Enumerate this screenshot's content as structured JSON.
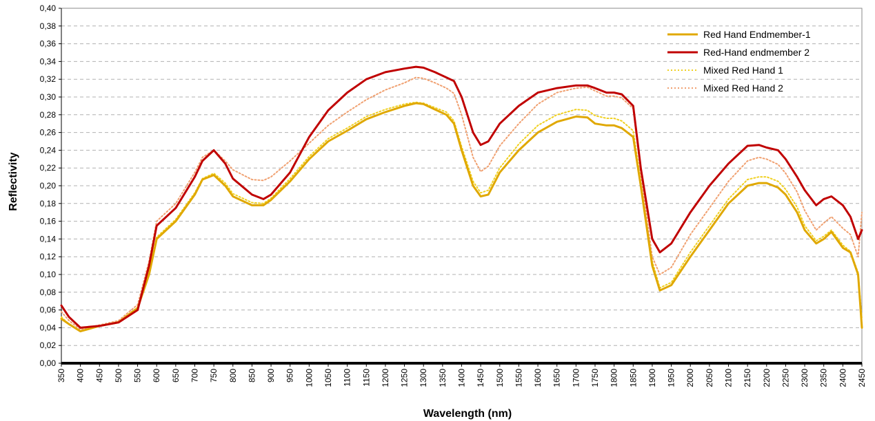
{
  "chart_data": {
    "type": "line",
    "xlabel": "Wavelength (nm)",
    "ylabel": "Reflectivity",
    "xlim": [
      350,
      2450
    ],
    "ylim": [
      0.0,
      0.4
    ],
    "x_ticks": [
      350,
      400,
      450,
      500,
      550,
      600,
      650,
      700,
      750,
      800,
      850,
      900,
      950,
      1000,
      1050,
      1100,
      1150,
      1200,
      1250,
      1300,
      1350,
      1400,
      1450,
      1500,
      1550,
      1600,
      1650,
      1700,
      1750,
      1800,
      1850,
      1900,
      1950,
      2000,
      2050,
      2100,
      2150,
      2200,
      2250,
      2300,
      2350,
      2400,
      2450
    ],
    "y_ticks": [
      "0,00",
      "0,02",
      "0,04",
      "0,06",
      "0,08",
      "0,10",
      "0,12",
      "0,14",
      "0,16",
      "0,18",
      "0,20",
      "0,22",
      "0,24",
      "0,26",
      "0,28",
      "0,30",
      "0,32",
      "0,34",
      "0,36",
      "0,38",
      "0,40"
    ],
    "y_tick_values": [
      0,
      0.02,
      0.04,
      0.06,
      0.08,
      0.1,
      0.12,
      0.14,
      0.16,
      0.18,
      0.2,
      0.22,
      0.24,
      0.26,
      0.28,
      0.3,
      0.32,
      0.34,
      0.36,
      0.38,
      0.4
    ],
    "grid": "horizontal-dashed",
    "legend_position": "top-right",
    "series": [
      {
        "name": "Red Hand Endmember-1",
        "color": "#E0A800",
        "style": "solid",
        "x": [
          350,
          370,
          400,
          450,
          500,
          550,
          580,
          600,
          650,
          700,
          720,
          750,
          780,
          800,
          850,
          880,
          900,
          950,
          1000,
          1050,
          1100,
          1150,
          1200,
          1250,
          1280,
          1300,
          1330,
          1360,
          1380,
          1400,
          1430,
          1450,
          1470,
          1500,
          1550,
          1600,
          1650,
          1700,
          1730,
          1750,
          1780,
          1800,
          1820,
          1850,
          1870,
          1900,
          1920,
          1950,
          2000,
          2050,
          2100,
          2150,
          2180,
          2200,
          2230,
          2250,
          2280,
          2300,
          2330,
          2350,
          2370,
          2400,
          2420,
          2440,
          2450
        ],
        "y": [
          0.05,
          0.044,
          0.036,
          0.042,
          0.046,
          0.062,
          0.1,
          0.14,
          0.16,
          0.19,
          0.207,
          0.212,
          0.2,
          0.188,
          0.178,
          0.178,
          0.184,
          0.205,
          0.23,
          0.25,
          0.262,
          0.275,
          0.283,
          0.29,
          0.293,
          0.292,
          0.286,
          0.28,
          0.27,
          0.24,
          0.2,
          0.188,
          0.19,
          0.215,
          0.24,
          0.26,
          0.272,
          0.278,
          0.277,
          0.27,
          0.268,
          0.268,
          0.265,
          0.255,
          0.2,
          0.11,
          0.082,
          0.088,
          0.12,
          0.15,
          0.18,
          0.2,
          0.203,
          0.203,
          0.198,
          0.19,
          0.17,
          0.15,
          0.135,
          0.14,
          0.148,
          0.13,
          0.125,
          0.1,
          0.04
        ]
      },
      {
        "name": "Red-Hand endmember 2",
        "color": "#C00000",
        "style": "solid",
        "x": [
          350,
          370,
          400,
          450,
          500,
          550,
          580,
          600,
          650,
          700,
          720,
          750,
          780,
          800,
          850,
          880,
          900,
          950,
          1000,
          1050,
          1100,
          1150,
          1200,
          1250,
          1280,
          1300,
          1330,
          1360,
          1380,
          1400,
          1430,
          1450,
          1470,
          1500,
          1550,
          1600,
          1650,
          1700,
          1730,
          1750,
          1780,
          1800,
          1820,
          1850,
          1870,
          1900,
          1920,
          1950,
          2000,
          2050,
          2100,
          2150,
          2180,
          2200,
          2230,
          2250,
          2280,
          2300,
          2330,
          2350,
          2370,
          2400,
          2420,
          2440,
          2450
        ],
        "y": [
          0.065,
          0.052,
          0.04,
          0.042,
          0.046,
          0.06,
          0.11,
          0.155,
          0.175,
          0.21,
          0.228,
          0.24,
          0.225,
          0.208,
          0.19,
          0.185,
          0.19,
          0.215,
          0.255,
          0.285,
          0.305,
          0.32,
          0.328,
          0.332,
          0.334,
          0.333,
          0.328,
          0.322,
          0.318,
          0.3,
          0.26,
          0.246,
          0.25,
          0.27,
          0.29,
          0.305,
          0.31,
          0.313,
          0.313,
          0.31,
          0.305,
          0.305,
          0.303,
          0.29,
          0.22,
          0.14,
          0.125,
          0.135,
          0.17,
          0.2,
          0.225,
          0.245,
          0.246,
          0.243,
          0.24,
          0.23,
          0.21,
          0.195,
          0.178,
          0.185,
          0.188,
          0.178,
          0.165,
          0.14,
          0.15
        ]
      },
      {
        "name": "Mixed Red Hand 1",
        "color": "#F0D020",
        "style": "dotted",
        "x": [
          350,
          370,
          400,
          450,
          500,
          550,
          580,
          600,
          650,
          700,
          720,
          750,
          780,
          800,
          850,
          880,
          900,
          950,
          1000,
          1050,
          1100,
          1150,
          1200,
          1250,
          1280,
          1300,
          1330,
          1360,
          1380,
          1400,
          1430,
          1450,
          1470,
          1500,
          1550,
          1600,
          1650,
          1700,
          1730,
          1750,
          1780,
          1800,
          1820,
          1850,
          1870,
          1900,
          1920,
          1950,
          2000,
          2050,
          2100,
          2150,
          2180,
          2200,
          2230,
          2250,
          2280,
          2300,
          2330,
          2350,
          2370,
          2400,
          2420,
          2440,
          2450
        ],
        "y": [
          0.052,
          0.044,
          0.036,
          0.042,
          0.047,
          0.063,
          0.102,
          0.142,
          0.162,
          0.192,
          0.208,
          0.214,
          0.203,
          0.191,
          0.181,
          0.18,
          0.186,
          0.208,
          0.233,
          0.253,
          0.265,
          0.278,
          0.286,
          0.292,
          0.294,
          0.293,
          0.288,
          0.283,
          0.273,
          0.244,
          0.205,
          0.192,
          0.195,
          0.22,
          0.247,
          0.268,
          0.28,
          0.286,
          0.285,
          0.279,
          0.276,
          0.276,
          0.273,
          0.262,
          0.205,
          0.115,
          0.085,
          0.091,
          0.125,
          0.155,
          0.185,
          0.207,
          0.21,
          0.21,
          0.205,
          0.196,
          0.176,
          0.155,
          0.138,
          0.143,
          0.15,
          0.133,
          0.126,
          0.102,
          0.05
        ]
      },
      {
        "name": "Mixed Red Hand 2",
        "color": "#F0A070",
        "style": "dotted",
        "x": [
          350,
          370,
          400,
          450,
          500,
          550,
          580,
          600,
          650,
          700,
          720,
          750,
          780,
          800,
          850,
          880,
          900,
          950,
          1000,
          1050,
          1100,
          1150,
          1200,
          1250,
          1280,
          1300,
          1330,
          1360,
          1380,
          1400,
          1430,
          1450,
          1470,
          1500,
          1550,
          1600,
          1650,
          1700,
          1730,
          1750,
          1780,
          1800,
          1820,
          1850,
          1870,
          1900,
          1920,
          1950,
          2000,
          2050,
          2100,
          2150,
          2180,
          2200,
          2230,
          2250,
          2280,
          2300,
          2330,
          2350,
          2370,
          2400,
          2420,
          2440,
          2450
        ],
        "y": [
          0.058,
          0.048,
          0.038,
          0.043,
          0.048,
          0.066,
          0.115,
          0.16,
          0.18,
          0.215,
          0.232,
          0.24,
          0.228,
          0.218,
          0.207,
          0.206,
          0.21,
          0.228,
          0.248,
          0.268,
          0.283,
          0.297,
          0.308,
          0.316,
          0.322,
          0.321,
          0.316,
          0.31,
          0.304,
          0.28,
          0.232,
          0.216,
          0.222,
          0.245,
          0.27,
          0.292,
          0.305,
          0.31,
          0.311,
          0.307,
          0.301,
          0.301,
          0.299,
          0.287,
          0.215,
          0.12,
          0.1,
          0.108,
          0.145,
          0.175,
          0.205,
          0.228,
          0.232,
          0.23,
          0.224,
          0.214,
          0.193,
          0.172,
          0.15,
          0.158,
          0.165,
          0.152,
          0.145,
          0.12,
          0.17
        ]
      }
    ]
  }
}
